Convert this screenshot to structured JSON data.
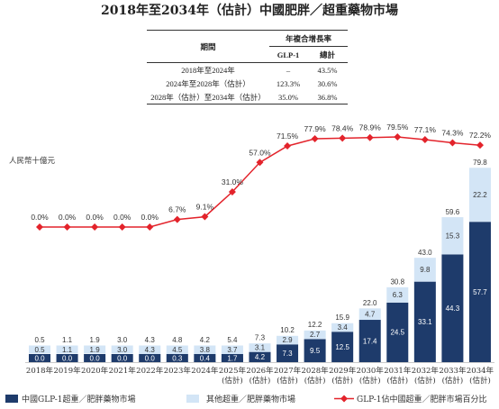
{
  "cagr_table": {
    "header_period": "期間",
    "header_cagr": "年複合增長率",
    "header_glp1": "GLP-1",
    "header_total": "總計",
    "rows": [
      {
        "period": "2018年至2024年",
        "glp1": "–",
        "total": "43.5%"
      },
      {
        "period": "2024年至2028年（估計）",
        "glp1": "123.3%",
        "total": "30.6%"
      },
      {
        "period": "2028年（估計）至2034年（估計）",
        "glp1": "35.0%",
        "total": "36.8%"
      }
    ]
  },
  "colors": {
    "glp1_bar": "#1e3b6b",
    "other_bar": "#d3e5f6",
    "share_line": "#e3232b",
    "label_text": "#333333"
  },
  "chart_data": {
    "type": "bar",
    "stacked": true,
    "title": "2018年至2034年（估計）中國肥胖／超重藥物市場",
    "ylabel": "人民幣十億元",
    "ylim": [
      0,
      80
    ],
    "categories": [
      "2018年",
      "2019年",
      "2020年",
      "2021年",
      "2022年",
      "2023年",
      "2024年",
      "2025年(估計)",
      "2026年(估計)",
      "2027年(估計)",
      "2028年(估計)",
      "2029年(估計)",
      "2030年(估計)",
      "2031年(估計)",
      "2032年(估計)",
      "2033年(估計)",
      "2034年(估計)"
    ],
    "series": [
      {
        "name": "中國GLP-1超重／肥胖藥物市場",
        "values": [
          0.0,
          0.0,
          0.0,
          0.0,
          0.0,
          0.3,
          0.4,
          1.7,
          4.2,
          7.3,
          9.5,
          12.5,
          17.4,
          24.5,
          33.1,
          44.3,
          57.7
        ]
      },
      {
        "name": "其他超重／肥胖藥物市場",
        "values": [
          0.5,
          1.1,
          1.9,
          3.0,
          4.3,
          4.5,
          3.8,
          3.7,
          3.1,
          2.9,
          2.7,
          3.4,
          4.7,
          6.3,
          9.8,
          15.3,
          22.2
        ]
      }
    ],
    "totals": [
      0.5,
      1.1,
      1.9,
      3.0,
      4.3,
      4.8,
      4.2,
      5.4,
      7.3,
      10.2,
      12.2,
      15.9,
      22.0,
      30.8,
      43.0,
      59.6,
      79.8
    ],
    "line_series": {
      "name": "GLP-1佔中國超重／肥胖市場百分比",
      "type": "line",
      "unit": "%",
      "ylim": [
        0,
        100
      ],
      "values": [
        0.0,
        0.0,
        0.0,
        0.0,
        0.0,
        6.7,
        9.1,
        31.0,
        57.0,
        71.5,
        77.9,
        78.4,
        78.9,
        79.5,
        77.1,
        74.3,
        72.2
      ]
    },
    "grid": false,
    "legend": "bottom"
  }
}
